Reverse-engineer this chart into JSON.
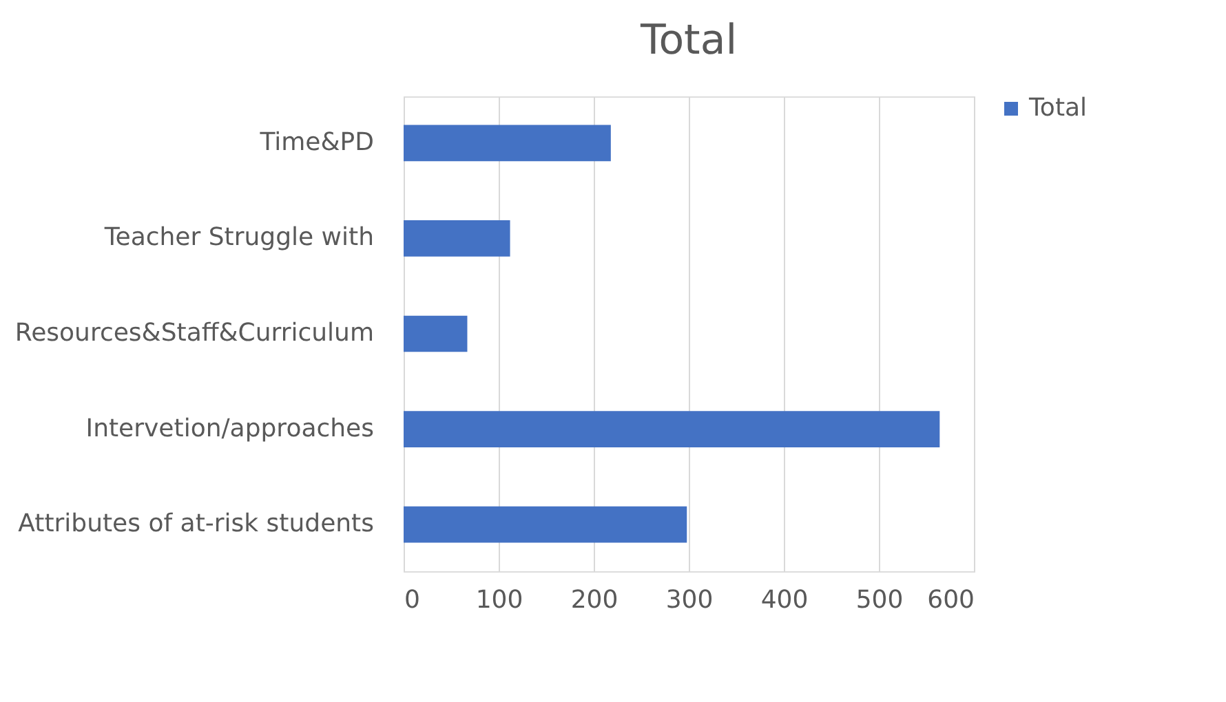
{
  "chart_data": {
    "type": "bar",
    "orientation": "horizontal",
    "title": "Total",
    "categories": [
      "Time&PD",
      "Teacher Struggle with",
      "Resources&Staff&Curriculum",
      "Intervetion/approaches",
      "Attributes of at-risk students"
    ],
    "series": [
      {
        "name": "Total",
        "color": "#4472c4",
        "values": [
          218,
          112,
          67,
          564,
          298
        ]
      }
    ],
    "xlim": [
      0,
      600
    ],
    "xticks": [
      0,
      100,
      200,
      300,
      400,
      500,
      600
    ],
    "grid": "x",
    "legend": "right"
  }
}
